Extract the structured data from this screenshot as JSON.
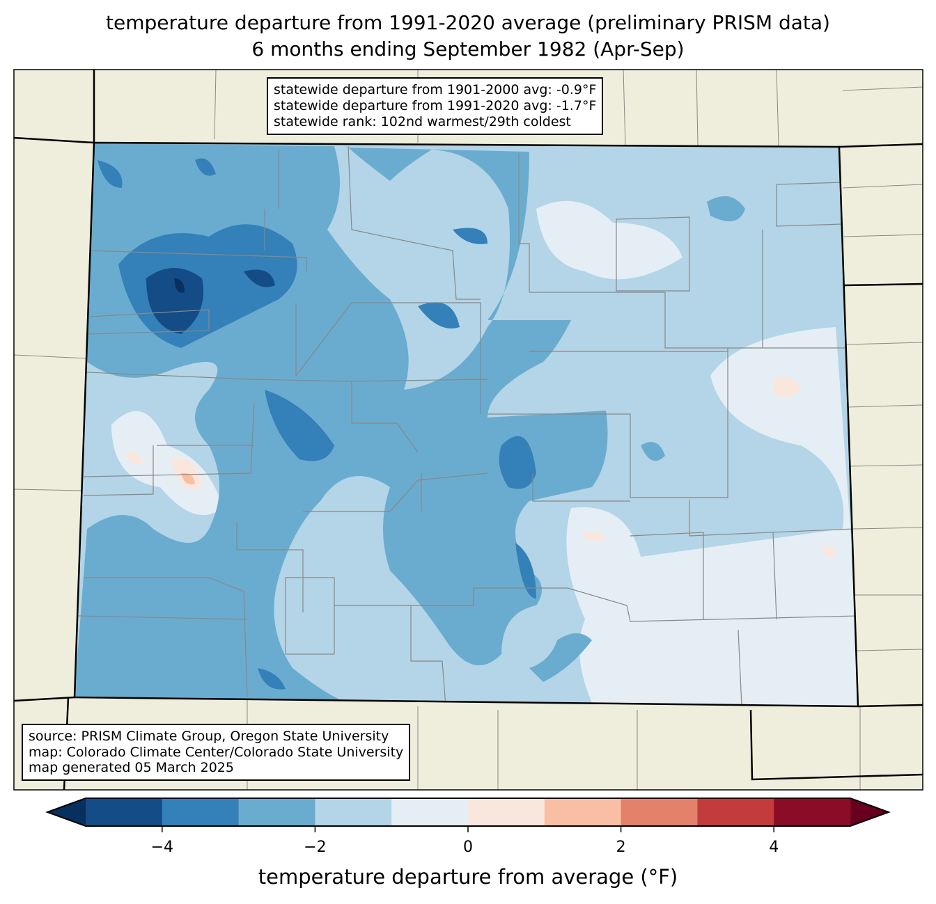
{
  "title": {
    "line1": "temperature departure from 1991-2020 average (preliminary PRISM data)",
    "line2": "6 months ending September 1982 (Apr-Sep)"
  },
  "stats": {
    "line1": "statewide departure from 1901-2000 avg: -0.9°F",
    "line2": "statewide departure from 1991-2020 avg: -1.7°F",
    "line3": "statewide rank: 102nd warmest/29th coldest"
  },
  "credits": {
    "line1": "source: PRISM Climate Group, Oregon State University",
    "line2": "map: Colorado Climate Center/Colorado State University",
    "line3": "map generated 05 March 2025"
  },
  "colorbar": {
    "label": "temperature departure from average (°F)",
    "boundaries": [
      -5,
      -4,
      -3,
      -2,
      -1,
      0,
      1,
      2,
      3,
      4,
      5
    ],
    "colors": [
      "#134c87",
      "#3480b9",
      "#6aacd0",
      "#b3d5e7",
      "#e5eef5",
      "#f9e6dd",
      "#f9bfa5",
      "#e4816a",
      "#c33b3b",
      "#8b0c26"
    ],
    "under_color": "#08305e",
    "over_color": "#67001f",
    "ticks": [
      {
        "value": -4,
        "label": "−4"
      },
      {
        "value": -2,
        "label": "−2"
      },
      {
        "value": 0,
        "label": "0"
      },
      {
        "value": 2,
        "label": "2"
      },
      {
        "value": 4,
        "label": "4"
      }
    ]
  },
  "map_colors": {
    "land": "#efeedc",
    "base": "#b3d5e7"
  }
}
